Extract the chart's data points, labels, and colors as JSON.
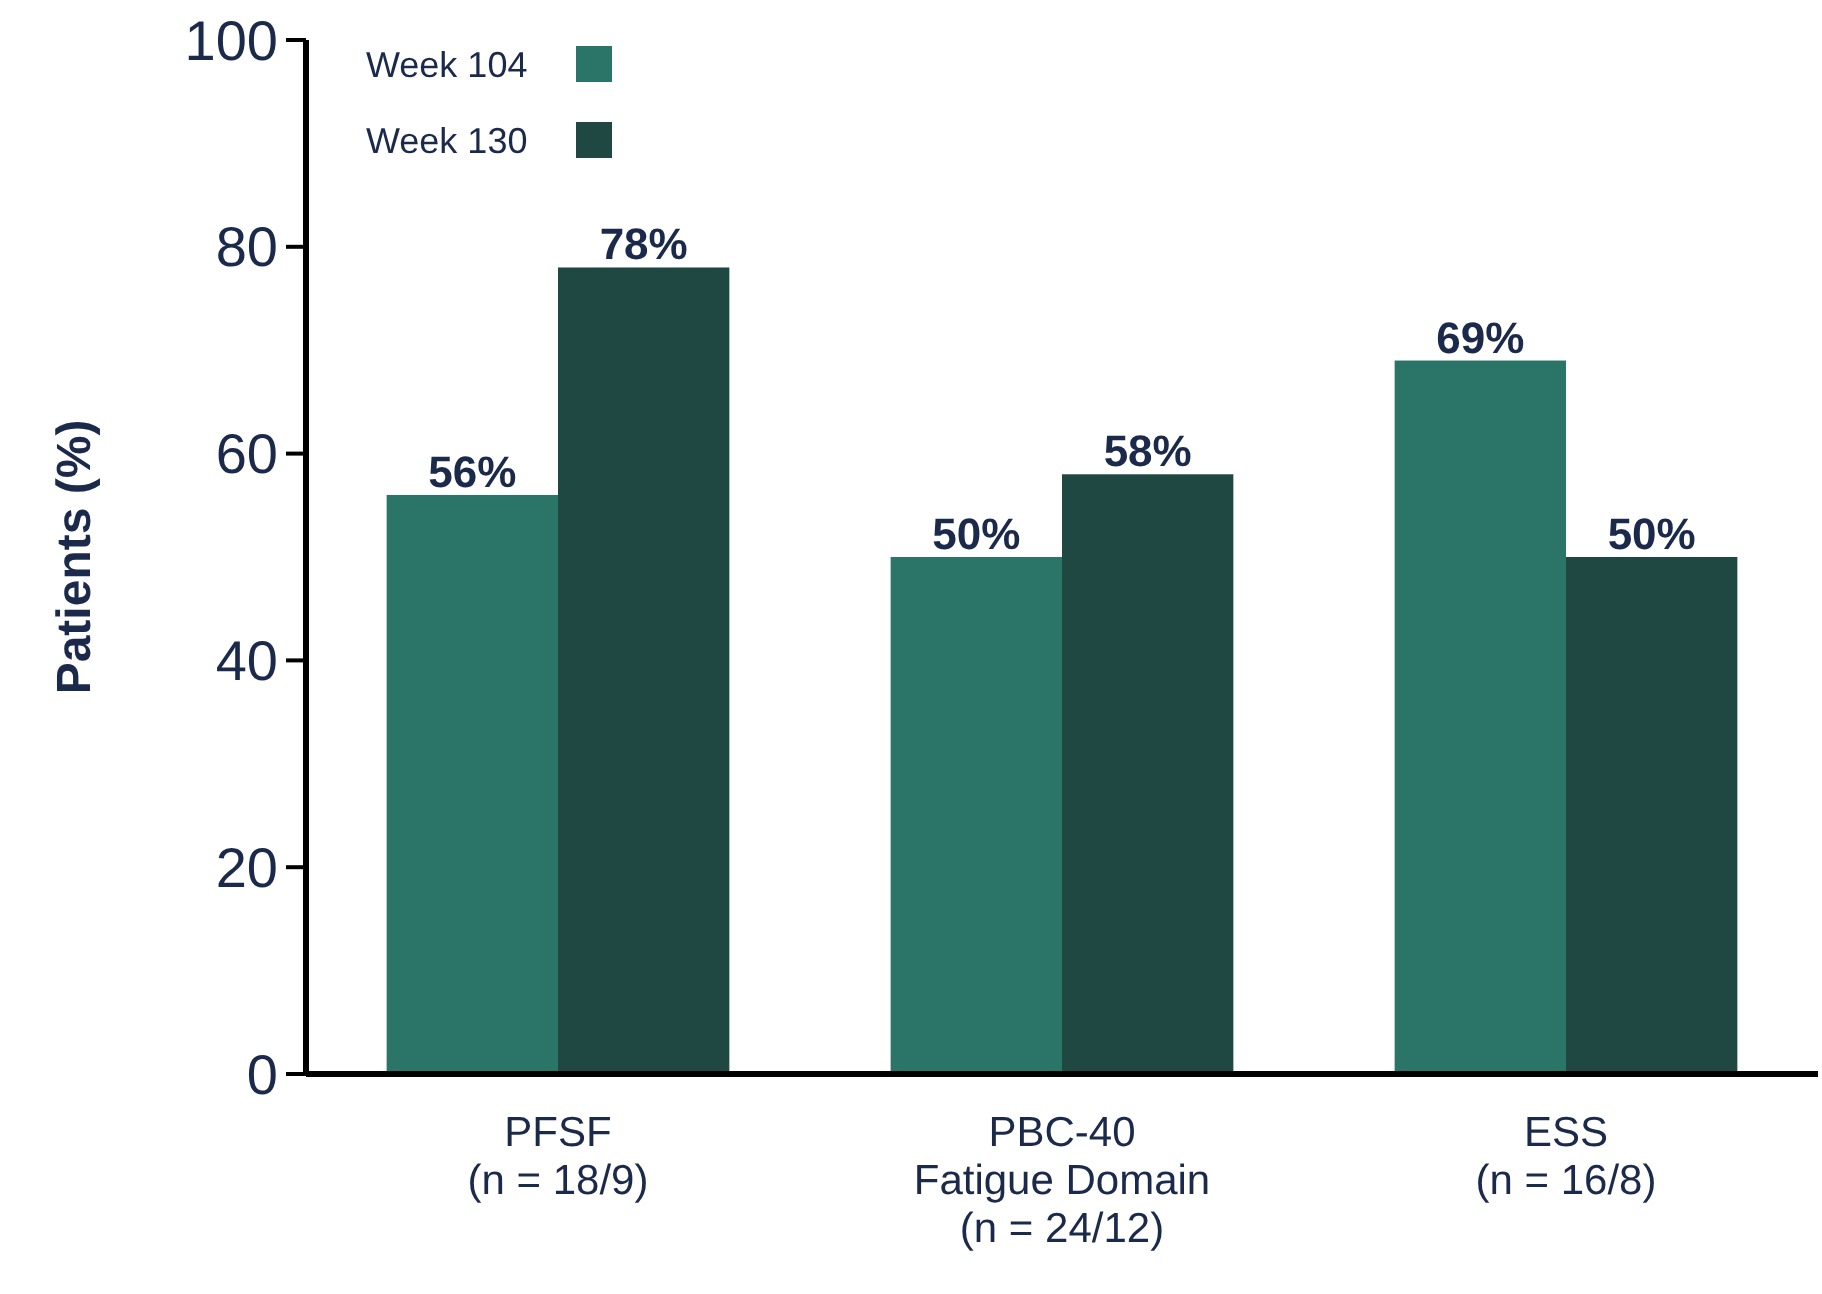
{
  "chart_data": {
    "type": "bar",
    "ylabel": "Patients (%)",
    "categories": [
      "PFSF\n(n = 18/9)",
      "PBC-40\nFatigue Domain\n(n = 24/12)",
      "ESS\n(n = 16/8)"
    ],
    "series": [
      {
        "name": "Week 104",
        "color": "#2b7468",
        "values": [
          56,
          50,
          69
        ],
        "value_labels": [
          "56%",
          "50%",
          "69%"
        ]
      },
      {
        "name": "Week 130",
        "color": "#1f4843",
        "values": [
          78,
          58,
          50
        ],
        "value_labels": [
          "78%",
          "58%",
          "50%"
        ]
      }
    ],
    "ylim": [
      0,
      100
    ],
    "yticks": [
      0,
      20,
      40,
      60,
      80,
      100
    ],
    "grid": false,
    "legend": "top left"
  }
}
